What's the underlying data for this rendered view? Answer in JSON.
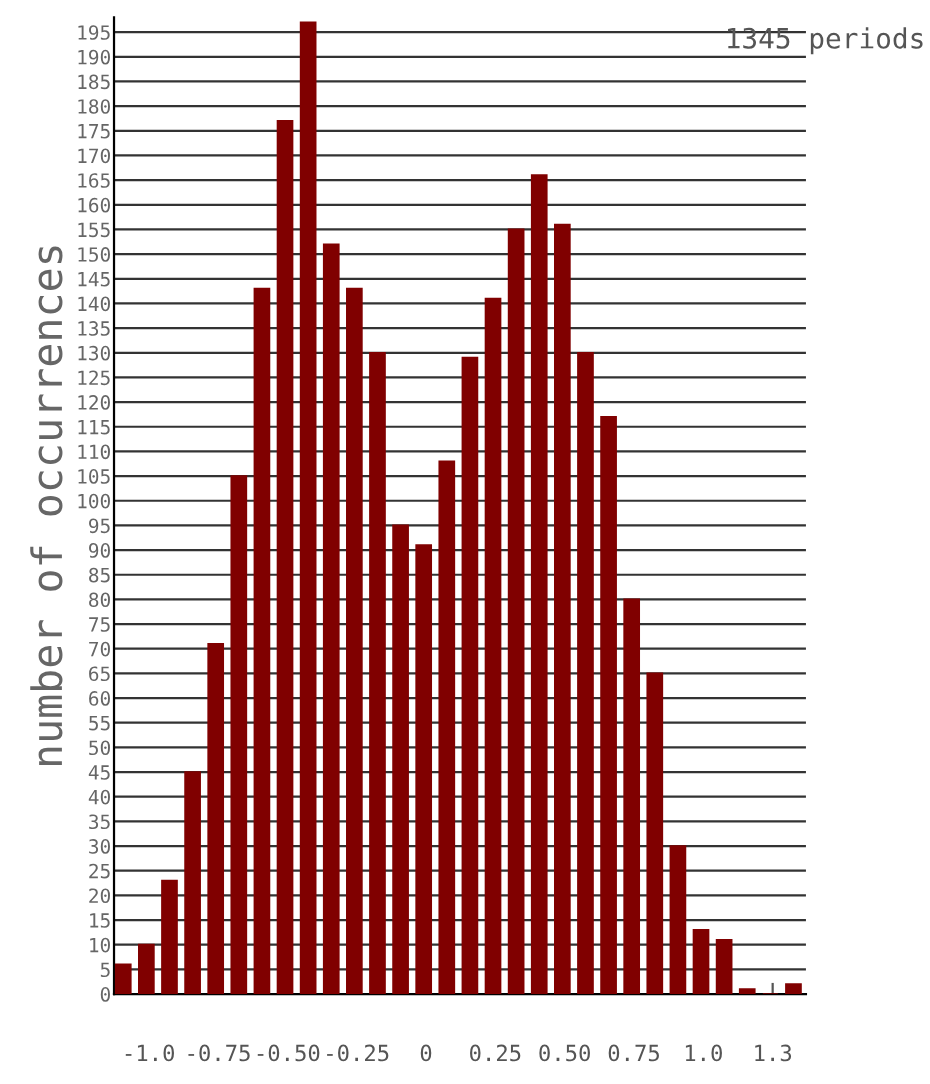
{
  "chart_data": {
    "type": "histogram",
    "ylabel": "number of occurrences",
    "annotations": [
      "1345 periods"
    ],
    "bins": [
      -1.1333,
      -1.05,
      -0.9667,
      -0.8833,
      -0.8,
      -0.7167,
      -0.6333,
      -0.55,
      -0.4667,
      -0.3833,
      -0.3,
      -0.2167,
      -0.1333,
      -0.05,
      0.0333,
      0.1167,
      0.2,
      0.2833,
      0.3667,
      0.45,
      0.5333,
      0.6167,
      0.7,
      0.7833,
      0.8667,
      0.95,
      1.0333,
      1.1167,
      1.2,
      1.2833,
      1.3667
    ],
    "values": [
      6,
      10,
      23,
      45,
      71,
      105,
      143,
      177,
      197,
      152,
      143,
      130,
      95,
      91,
      108,
      129,
      141,
      155,
      166,
      156,
      130,
      117,
      80,
      65,
      30,
      13,
      11,
      1,
      0,
      2
    ],
    "color": "#800000",
    "xlim": [
      -1.125,
      1.37
    ],
    "xticks": [
      {
        "value": -1.0,
        "label": "-1.0"
      },
      -0.75,
      {
        "value": -0.5,
        "label": "-0.50"
      },
      -0.25,
      0,
      0.25,
      {
        "value": 0.5,
        "label": "0.50"
      },
      0.75,
      {
        "value": 1.0,
        "label": "1.0"
      },
      {
        "value": 1.25,
        "label": "1.3"
      }
    ],
    "ylim": [
      0,
      198
    ],
    "yticks": [
      0,
      5,
      10,
      15,
      20,
      25,
      30,
      35,
      40,
      45,
      50,
      55,
      60,
      65,
      70,
      75,
      80,
      85,
      90,
      95,
      100,
      105,
      110,
      115,
      120,
      125,
      130,
      135,
      140,
      145,
      150,
      155,
      160,
      165,
      170,
      175,
      180,
      185,
      190,
      195
    ],
    "grid": "y",
    "legend": false
  }
}
